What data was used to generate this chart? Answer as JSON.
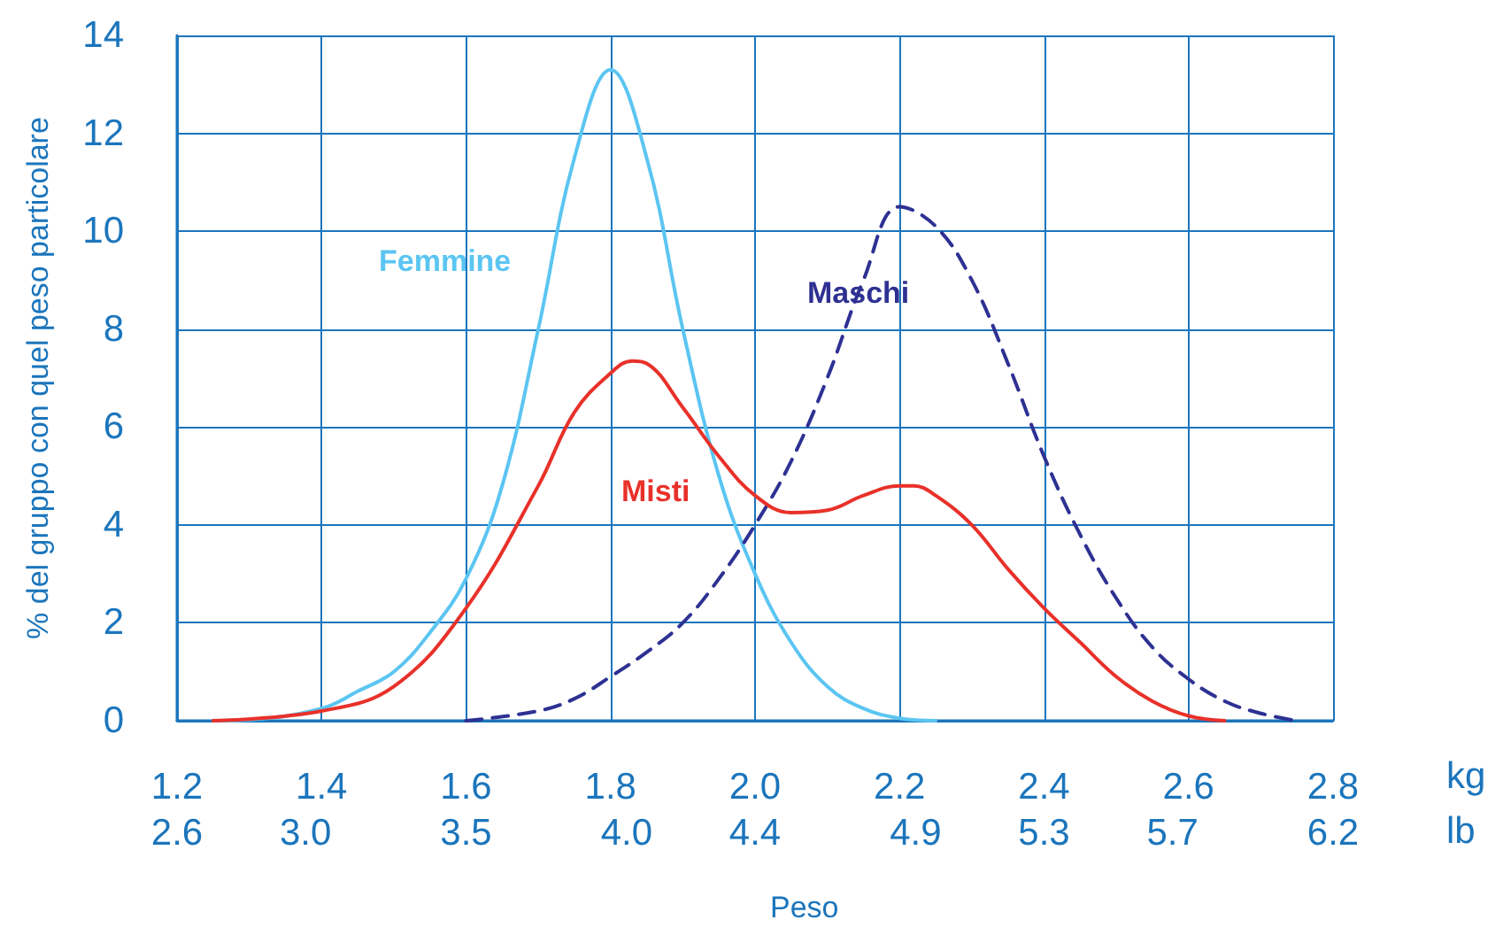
{
  "chart_data": {
    "type": "line",
    "ylabel": "% del gruppo con quel peso particolare",
    "xlabel": "Peso",
    "x2label": "lb",
    "annotations": [
      "kg"
    ],
    "xlim": [
      1.2,
      2.8
    ],
    "xticks": [
      {
        "value": 1.2,
        "label": "1.2"
      },
      {
        "value": 1.4,
        "label": "1.4"
      },
      {
        "value": 1.6,
        "label": "1.6"
      },
      {
        "value": 1.8,
        "label": "1.8"
      },
      {
        "value": 2.0,
        "label": "2.0"
      },
      {
        "value": 2.2,
        "label": "2.2"
      },
      {
        "value": 2.4,
        "label": "2.4"
      },
      {
        "value": 2.6,
        "label": "2.6"
      },
      {
        "value": 2.8,
        "label": "2.8"
      }
    ],
    "x2lim": [
      2.6,
      6.2
    ],
    "x2ticks": [
      {
        "value": 2.6,
        "label": "2.6"
      },
      {
        "value": 3.0,
        "label": "3.0"
      },
      {
        "value": 3.5,
        "label": "3.5"
      },
      {
        "value": 4.0,
        "label": "4.0"
      },
      {
        "value": 4.4,
        "label": "4.4"
      },
      {
        "value": 4.9,
        "label": "4.9"
      },
      {
        "value": 5.3,
        "label": "5.3"
      },
      {
        "value": 5.7,
        "label": "5.7"
      },
      {
        "value": 6.2,
        "label": "6.2"
      }
    ],
    "ylim": [
      0,
      14
    ],
    "yticks": [
      0,
      2,
      4,
      6,
      8,
      10,
      12,
      14
    ],
    "grid": true,
    "legend": false,
    "marker": "none",
    "series": [
      {
        "name": "Femmine",
        "color": "#5bc5f2",
        "line_style": "solid",
        "x": [
          1.25,
          1.3,
          1.4,
          1.45,
          1.5,
          1.55,
          1.6,
          1.65,
          1.7,
          1.75,
          1.8,
          1.85,
          1.9,
          1.95,
          2.0,
          2.05,
          2.1,
          2.15,
          2.2,
          2.25
        ],
        "values": [
          0,
          0.02,
          0.25,
          0.6,
          1.0,
          1.8,
          2.9,
          4.8,
          8.0,
          11.5,
          13.3,
          11.5,
          8.0,
          5.0,
          3.0,
          1.6,
          0.7,
          0.25,
          0.05,
          0
        ]
      },
      {
        "name": "Maschi",
        "color": "#2e3192",
        "line_style": "dashed",
        "x": [
          1.6,
          1.7,
          1.75,
          1.8,
          1.85,
          1.9,
          1.95,
          2.0,
          2.05,
          2.1,
          2.15,
          2.2,
          2.25,
          2.3,
          2.35,
          2.4,
          2.45,
          2.5,
          2.55,
          2.6,
          2.65,
          2.7,
          2.75
        ],
        "values": [
          0,
          0.2,
          0.45,
          0.9,
          1.4,
          2.0,
          2.9,
          4.0,
          5.3,
          7.0,
          9.0,
          10.5,
          10.1,
          9.0,
          7.3,
          5.4,
          3.8,
          2.5,
          1.5,
          0.85,
          0.4,
          0.15,
          0
        ]
      },
      {
        "name": "Misti",
        "color": "#e8312a",
        "line_style": "solid",
        "x": [
          1.25,
          1.4,
          1.5,
          1.6,
          1.7,
          1.75,
          1.8,
          1.83,
          1.85,
          1.9,
          1.95,
          2.0,
          2.05,
          2.1,
          2.15,
          2.2,
          2.22,
          2.25,
          2.3,
          2.35,
          2.4,
          2.45,
          2.5,
          2.55,
          2.6,
          2.65
        ],
        "values": [
          0,
          0.2,
          0.7,
          2.3,
          4.8,
          6.3,
          7.1,
          7.35,
          7.3,
          6.4,
          5.4,
          4.6,
          4.25,
          4.3,
          4.6,
          4.8,
          4.8,
          4.6,
          4.0,
          3.1,
          2.3,
          1.6,
          0.9,
          0.4,
          0.1,
          0
        ]
      }
    ]
  }
}
